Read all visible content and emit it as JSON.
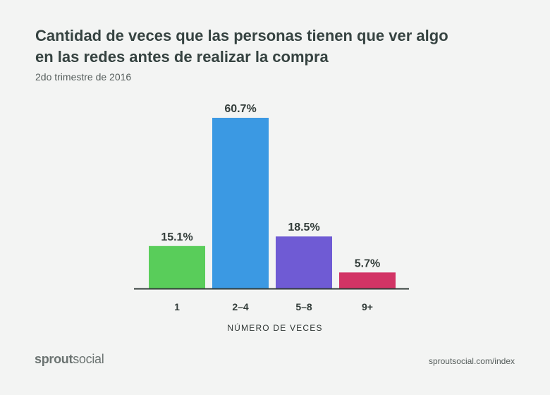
{
  "title_lines": [
    "Cantidad de veces que las personas tienen que ver algo",
    "en las redes antes de realizar la compra"
  ],
  "subtitle": "2do trimestre de 2016",
  "brand": {
    "part1": "sprout",
    "part2": "social"
  },
  "source_url": "sproutsocial.com/index",
  "chart_data": {
    "type": "bar",
    "title": "Cantidad de veces que las personas tienen que ver algo en las redes antes de realizar la compra",
    "subtitle": "2do trimestre de 2016",
    "xlabel": "NÚMERO DE VECES",
    "ylabel": "",
    "categories": [
      "1",
      "2–4",
      "5–8",
      "9+"
    ],
    "values": [
      15.1,
      60.7,
      18.5,
      5.7
    ],
    "value_labels": [
      "15.1%",
      "60.7%",
      "18.5%",
      "5.7%"
    ],
    "colors": [
      "#59cd5a",
      "#3b99e3",
      "#6f5bd4",
      "#d23465"
    ],
    "ylim": [
      0,
      60.7
    ],
    "grid": false,
    "legend": "none"
  }
}
